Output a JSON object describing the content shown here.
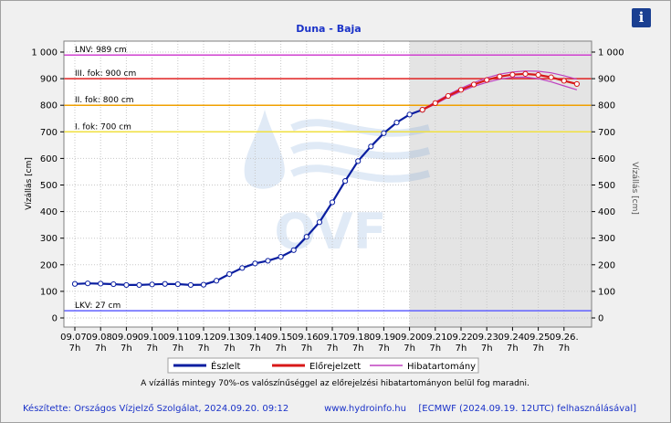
{
  "chart_data": {
    "type": "line",
    "title": "Duna - Baja",
    "ylabel": "Vízállás [cm]",
    "ylabel_right": "Vízállás [cm]",
    "ylim": [
      -20,
      1030
    ],
    "yticks": [
      0,
      100,
      200,
      300,
      400,
      500,
      600,
      700,
      800,
      900,
      1000
    ],
    "ytick_labels": [
      "0",
      "100",
      "200",
      "300",
      "400",
      "500",
      "600",
      "700",
      "800",
      "900",
      "1 000"
    ],
    "x_dates": [
      "09.07.",
      "09.08.",
      "09.09.",
      "09.10.",
      "09.11.",
      "09.12.",
      "09.13.",
      "09.14.",
      "09.15.",
      "09.16.",
      "09.17.",
      "09.18.",
      "09.19.",
      "09.20.",
      "09.21.",
      "09.22.",
      "09.23.",
      "09.24.",
      "09.25.",
      "09.26."
    ],
    "x_hour_label": "7h",
    "grid": true,
    "forecast_start": "09.20.",
    "levels": [
      {
        "label": "LNV: 989 cm",
        "value": 989,
        "color": "#d040d0"
      },
      {
        "label": "III. fok: 900 cm",
        "value": 900,
        "color": "#e02020"
      },
      {
        "label": "II. fok: 800 cm",
        "value": 800,
        "color": "#f0a000"
      },
      {
        "label": "I. fok: 700 cm",
        "value": 700,
        "color": "#f0e040"
      },
      {
        "label": "LKV: 27 cm",
        "value": 27,
        "color": "#6060ff"
      }
    ],
    "series": [
      {
        "name": "Észlelt",
        "color": "#0a1ea0",
        "points": [
          [
            0,
            128
          ],
          [
            0.5,
            130
          ],
          [
            1,
            129
          ],
          [
            1.5,
            127
          ],
          [
            2,
            124
          ],
          [
            2.5,
            124
          ],
          [
            3,
            126
          ],
          [
            3.5,
            128
          ],
          [
            4,
            127
          ],
          [
            4.5,
            124
          ],
          [
            5,
            125
          ],
          [
            5.5,
            140
          ],
          [
            6,
            165
          ],
          [
            6.5,
            188
          ],
          [
            7,
            205
          ],
          [
            7.5,
            215
          ],
          [
            8,
            230
          ],
          [
            8.5,
            255
          ],
          [
            9,
            305
          ],
          [
            9.5,
            360
          ],
          [
            10,
            435
          ],
          [
            10.5,
            515
          ],
          [
            11,
            590
          ],
          [
            11.5,
            645
          ],
          [
            12,
            695
          ],
          [
            12.5,
            735
          ],
          [
            13,
            765
          ],
          [
            13.5,
            783
          ]
        ]
      },
      {
        "name": "Előrejelzett",
        "color": "#d81818",
        "points": [
          [
            13.5,
            783
          ],
          [
            14,
            808
          ],
          [
            14.5,
            835
          ],
          [
            15,
            858
          ],
          [
            15.5,
            878
          ],
          [
            16,
            895
          ],
          [
            16.5,
            908
          ],
          [
            17,
            915
          ],
          [
            17.5,
            918
          ],
          [
            18,
            914
          ],
          [
            18.5,
            905
          ],
          [
            19,
            892
          ],
          [
            19.5,
            880
          ]
        ]
      },
      {
        "name": "Hibatartomány",
        "color": "#c040c0",
        "upper": [
          [
            13.5,
            785
          ],
          [
            14,
            812
          ],
          [
            14.5,
            840
          ],
          [
            15,
            864
          ],
          [
            15.5,
            885
          ],
          [
            16,
            903
          ],
          [
            16.5,
            917
          ],
          [
            17,
            925
          ],
          [
            17.5,
            929
          ],
          [
            18,
            928
          ],
          [
            18.5,
            922
          ],
          [
            19,
            911
          ],
          [
            19.5,
            898
          ]
        ],
        "lower": [
          [
            13.5,
            781
          ],
          [
            14,
            804
          ],
          [
            14.5,
            830
          ],
          [
            15,
            852
          ],
          [
            15.5,
            871
          ],
          [
            16,
            886
          ],
          [
            16.5,
            898
          ],
          [
            17,
            905
          ],
          [
            17.5,
            906
          ],
          [
            18,
            900
          ],
          [
            18.5,
            888
          ],
          [
            19,
            873
          ],
          [
            19.5,
            858
          ]
        ]
      }
    ],
    "note": "A vízállás mintegy 70%-os valószínűséggel az előrejelzési hibatartományon belül fog maradni."
  },
  "footer": {
    "credit": "Készítette: Országos Vízjelző Szolgálat, 2024.09.20. 09:12",
    "website": "www.hydroinfo.hu",
    "model": "[ECMWF (2024.09.19. 12UTC) felhasználásával]"
  },
  "watermark": "OVF",
  "info_button": "i",
  "colors": {
    "title": "#1a32c8",
    "forecast_bg": "#e4e4e4",
    "plot_bg": "#ffffff"
  }
}
